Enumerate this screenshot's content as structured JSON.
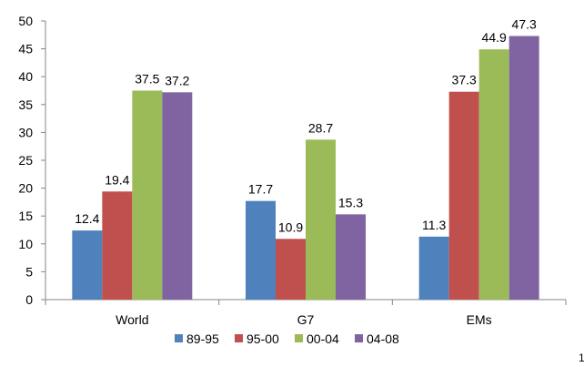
{
  "chart_data": {
    "type": "bar",
    "categories": [
      "World",
      "G7",
      "EMs"
    ],
    "series": [
      {
        "name": "89-95",
        "values": [
          12.4,
          17.7,
          11.3
        ],
        "color": "#4F81BD"
      },
      {
        "name": "95-00",
        "values": [
          19.4,
          10.9,
          37.3
        ],
        "color": "#C0504D"
      },
      {
        "name": "00-04",
        "values": [
          37.5,
          28.7,
          44.9
        ],
        "color": "#9BBB59"
      },
      {
        "name": "04-08",
        "values": [
          37.2,
          15.3,
          47.3
        ],
        "color": "#8064A2"
      }
    ],
    "ylim": [
      0,
      50
    ],
    "yticks": [
      0,
      5,
      10,
      15,
      20,
      25,
      30,
      35,
      40,
      45,
      50
    ],
    "grid": false,
    "legend": "bottom-center",
    "data_labels": true
  },
  "page": {
    "edge_mark": "1"
  }
}
